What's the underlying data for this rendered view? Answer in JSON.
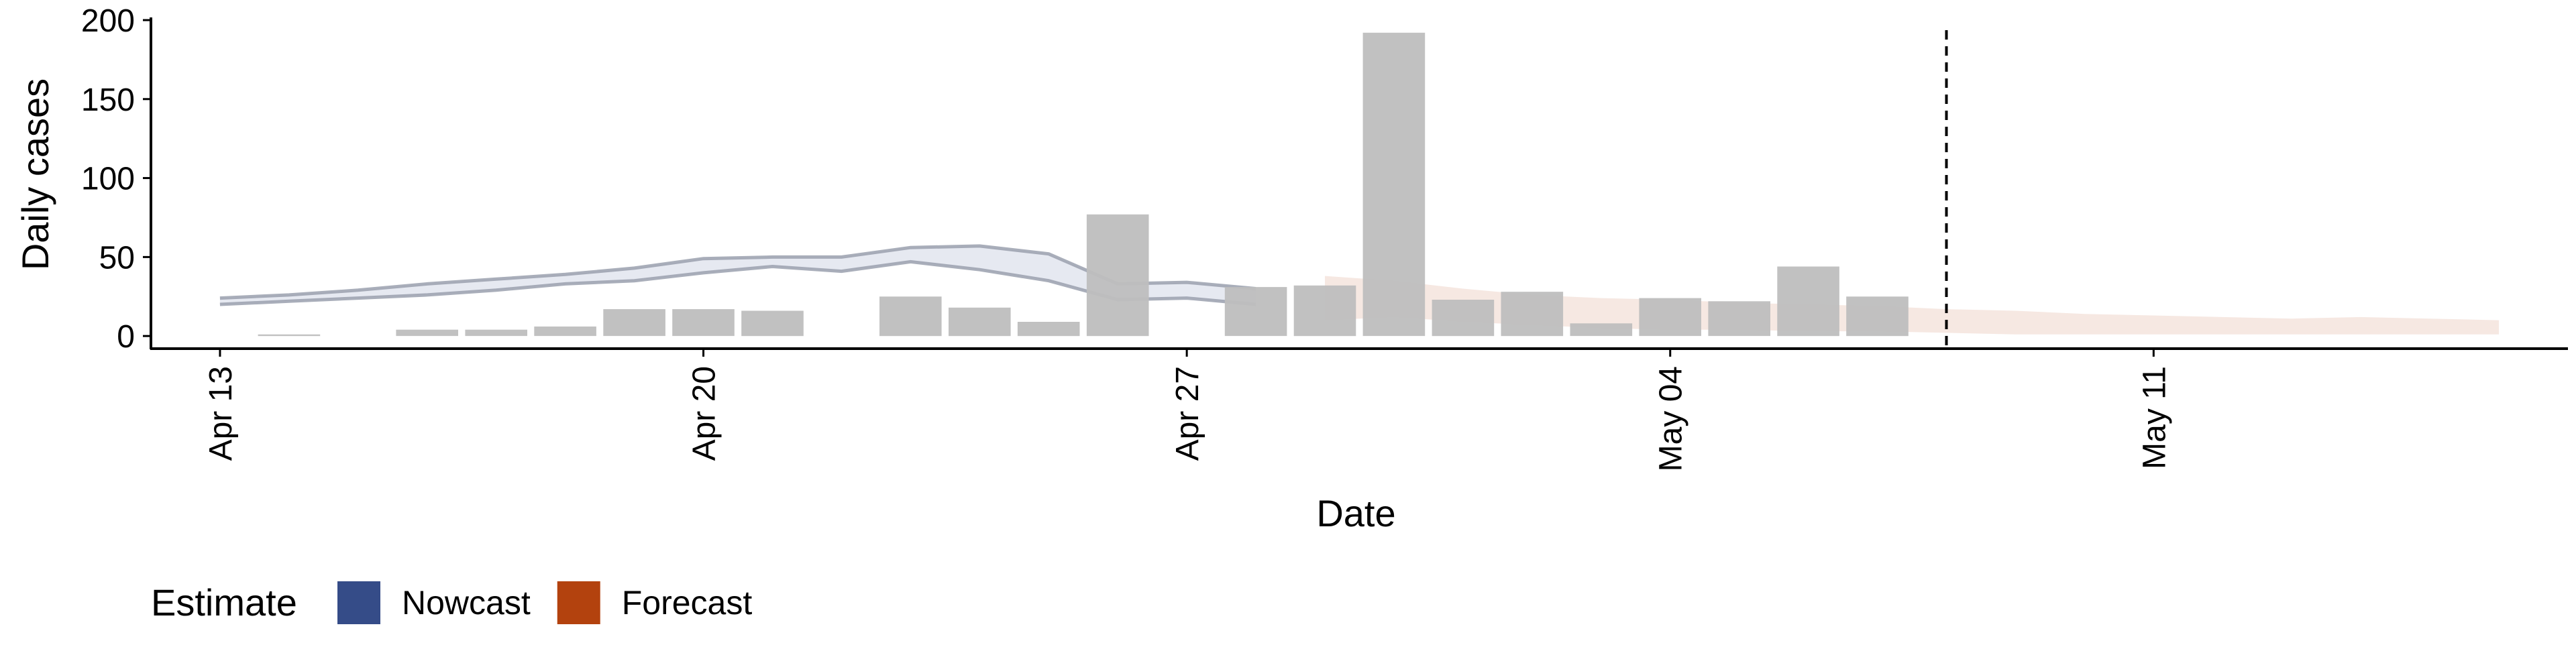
{
  "chart_data": {
    "type": "bar",
    "title": "",
    "xlabel": "Date",
    "ylabel": "Daily cases",
    "ylim": [
      -8,
      200
    ],
    "yticks": [
      0,
      50,
      100,
      150,
      200
    ],
    "xlim": [
      "2020-04-12",
      "2020-05-17"
    ],
    "xticks": [
      {
        "date": "2020-04-13",
        "label": "Apr 13"
      },
      {
        "date": "2020-04-20",
        "label": "Apr 20"
      },
      {
        "date": "2020-04-27",
        "label": "Apr 27"
      },
      {
        "date": "2020-05-04",
        "label": "May 04"
      },
      {
        "date": "2020-05-11",
        "label": "May 11"
      }
    ],
    "grid": false,
    "bar_color": "#BEBEBE",
    "reported_cases": [
      {
        "date": "2020-04-14",
        "value": 1
      },
      {
        "date": "2020-04-16",
        "value": 4
      },
      {
        "date": "2020-04-17",
        "value": 4
      },
      {
        "date": "2020-04-18",
        "value": 6
      },
      {
        "date": "2020-04-19",
        "value": 17
      },
      {
        "date": "2020-04-20",
        "value": 17
      },
      {
        "date": "2020-04-21",
        "value": 16
      },
      {
        "date": "2020-04-23",
        "value": 25
      },
      {
        "date": "2020-04-24",
        "value": 18
      },
      {
        "date": "2020-04-25",
        "value": 9
      },
      {
        "date": "2020-04-26",
        "value": 77
      },
      {
        "date": "2020-04-28",
        "value": 31
      },
      {
        "date": "2020-04-29",
        "value": 32
      },
      {
        "date": "2020-04-30",
        "value": 192
      },
      {
        "date": "2020-05-01",
        "value": 23
      },
      {
        "date": "2020-05-02",
        "value": 28
      },
      {
        "date": "2020-05-03",
        "value": 8
      },
      {
        "date": "2020-05-04",
        "value": 24
      },
      {
        "date": "2020-05-05",
        "value": 22
      },
      {
        "date": "2020-05-06",
        "value": 44
      },
      {
        "date": "2020-05-07",
        "value": 25
      }
    ],
    "vline_date": "2020-05-08",
    "legend": {
      "title": "Estimate",
      "position": "bottom-left",
      "entries": [
        {
          "label": "Nowcast",
          "color": "#354C88"
        },
        {
          "label": "Forecast",
          "color": "#B3420E"
        }
      ]
    },
    "series": [
      {
        "name": "Nowcast",
        "color": "#354C88",
        "x": [
          "2020-04-13",
          "2020-04-14",
          "2020-04-15",
          "2020-04-16",
          "2020-04-17",
          "2020-04-18",
          "2020-04-19",
          "2020-04-20",
          "2020-04-21",
          "2020-04-22",
          "2020-04-23",
          "2020-04-24",
          "2020-04-25",
          "2020-04-26",
          "2020-04-27",
          "2020-04-28"
        ],
        "lower": [
          20,
          22,
          24,
          26,
          29,
          33,
          35,
          40,
          44,
          41,
          47,
          42,
          35,
          23,
          24,
          20
        ],
        "upper": [
          24,
          26,
          29,
          33,
          36,
          39,
          43,
          49,
          50,
          50,
          56,
          57,
          52,
          33,
          34,
          30
        ]
      },
      {
        "name": "Forecast",
        "color": "#B3420E",
        "x": [
          "2020-04-29",
          "2020-04-30",
          "2020-05-01",
          "2020-05-02",
          "2020-05-03",
          "2020-05-04",
          "2020-05-05",
          "2020-05-06",
          "2020-05-07",
          "2020-05-08",
          "2020-05-09",
          "2020-05-10",
          "2020-05-11",
          "2020-05-12",
          "2020-05-13",
          "2020-05-14",
          "2020-05-15",
          "2020-05-16"
        ],
        "lower": [
          10,
          12,
          9,
          7,
          5,
          4,
          4,
          3,
          3,
          2,
          1,
          1,
          1,
          1,
          1,
          1,
          1,
          1
        ],
        "upper": [
          38,
          35,
          30,
          26,
          24,
          23,
          21,
          20,
          19,
          17,
          16,
          14,
          13,
          12,
          11,
          12,
          11,
          10
        ]
      }
    ]
  }
}
